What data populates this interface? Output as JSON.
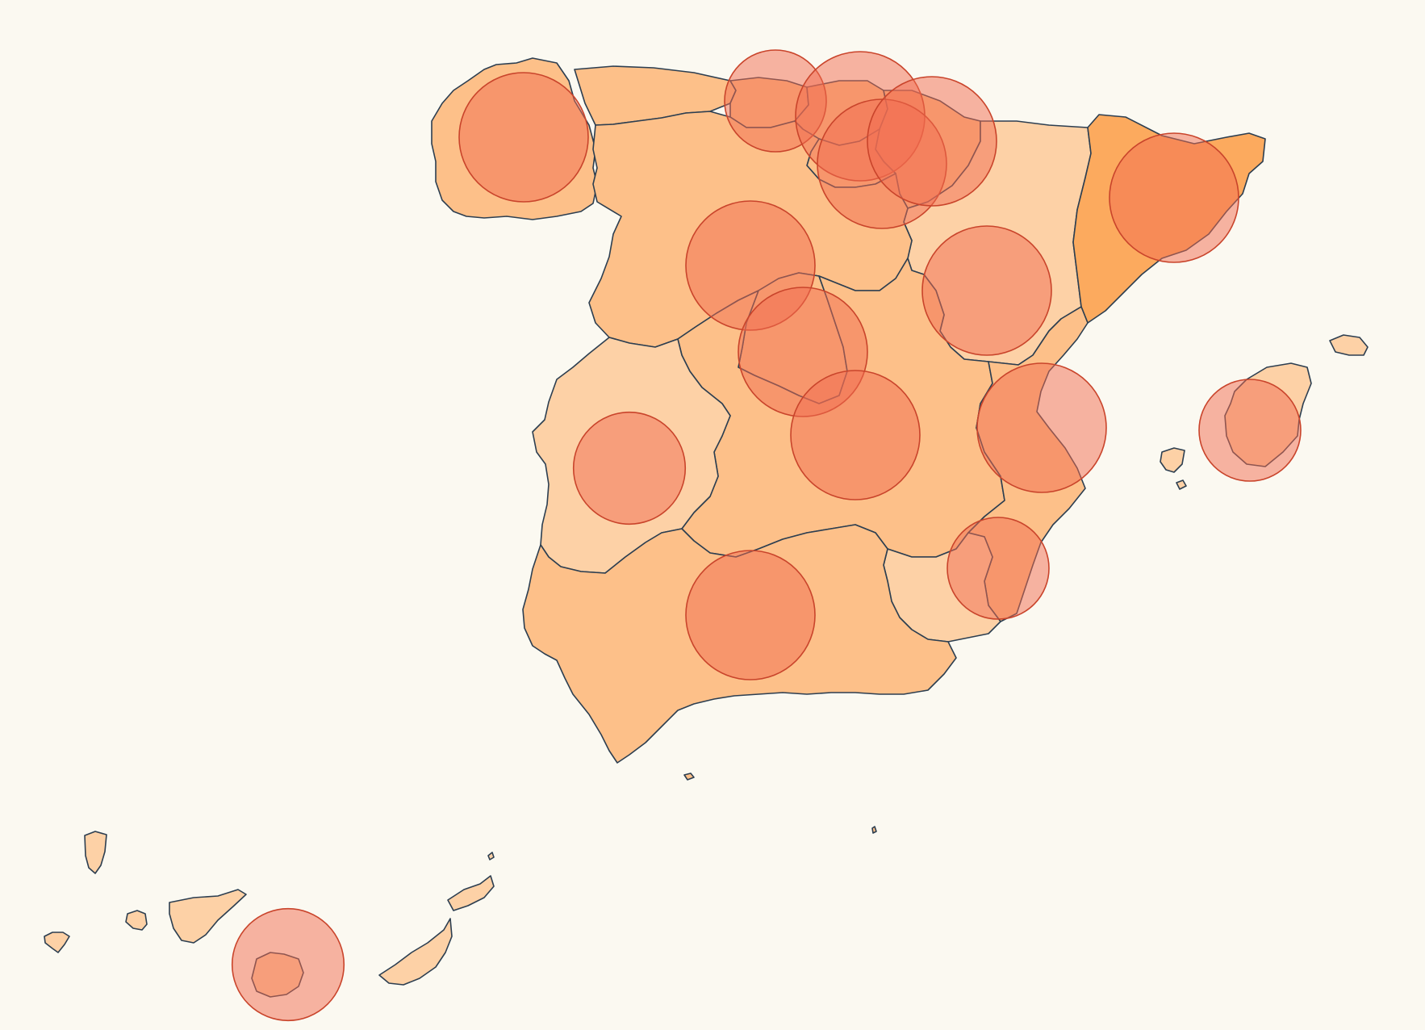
{
  "map": {
    "background": "#fbf9f1",
    "border_color": "#2c3e50",
    "bubble_fill": "#f26b4f",
    "bubble_stroke": "#c9442b",
    "choropleth_scale": [
      "#fdd1a6",
      "#fdc089",
      "#fcaa5e"
    ],
    "regions": [
      {
        "id": "galicia",
        "level": 1
      },
      {
        "id": "asturias",
        "level": 1
      },
      {
        "id": "cantabria",
        "level": 1
      },
      {
        "id": "pais-vasco",
        "level": 1
      },
      {
        "id": "navarra",
        "level": 1
      },
      {
        "id": "la-rioja",
        "level": 1
      },
      {
        "id": "aragon",
        "level": 0
      },
      {
        "id": "cataluna",
        "level": 2
      },
      {
        "id": "castilla-y-leon",
        "level": 1
      },
      {
        "id": "madrid",
        "level": 1
      },
      {
        "id": "castilla-la-mancha",
        "level": 1
      },
      {
        "id": "extremadura",
        "level": 0
      },
      {
        "id": "comunidad-valenciana",
        "level": 1
      },
      {
        "id": "murcia",
        "level": 0
      },
      {
        "id": "andalucia",
        "level": 1
      },
      {
        "id": "islas-baleares",
        "level": 0
      },
      {
        "id": "islas-canarias",
        "level": 0
      },
      {
        "id": "ceuta",
        "level": 1
      },
      {
        "id": "melilla",
        "level": 1
      }
    ],
    "bubbles": [
      {
        "region": "galicia",
        "size": 1.0
      },
      {
        "region": "asturias",
        "size": 0.62
      },
      {
        "region": "cantabria",
        "size": 1.0
      },
      {
        "region": "pais-vasco",
        "size": 1.0
      },
      {
        "region": "navarra",
        "size": 1.0
      },
      {
        "region": "castilla-y-leon",
        "size": 1.0
      },
      {
        "region": "aragon",
        "size": 1.0
      },
      {
        "region": "cataluna",
        "size": 1.0
      },
      {
        "region": "madrid",
        "size": 1.0
      },
      {
        "region": "castilla-la-mancha",
        "size": 1.0
      },
      {
        "region": "extremadura",
        "size": 0.75
      },
      {
        "region": "comunidad-valenciana",
        "size": 1.0
      },
      {
        "region": "murcia",
        "size": 0.62
      },
      {
        "region": "andalucia",
        "size": 1.0
      },
      {
        "region": "islas-baleares",
        "size": 0.62
      },
      {
        "region": "islas-canarias",
        "size": 0.75
      }
    ]
  }
}
